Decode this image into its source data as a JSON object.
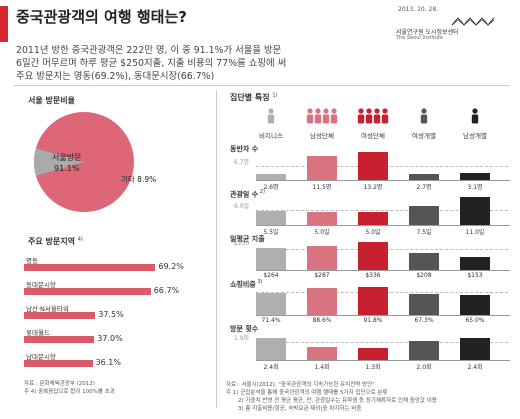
{
  "header": {
    "title": "중국관광객의 여행 행태는?",
    "date": "2013. 10. 28.",
    "org_kr": "서울연구원 도시정보센터",
    "org_en": "The Seoul Institute"
  },
  "intro": {
    "line1": "2011년 방한 중국관광객은 222만 명, 이 중 91.1%가 서울을 방문",
    "line2": "6일간 머무르며 하루 평균 $250지출, 지출 비용의 77%를 쇼핑에 써",
    "line3": "주요 방문지는 명동(69.2%), 동대문시장(66.7%)"
  },
  "colors": {
    "accent": "#d7282f",
    "pie": "#dd6677",
    "pie_other": "#aaaaaa",
    "dest_bar": "#d95b6b"
  },
  "chart_data": [
    {
      "type": "pie",
      "title": "서울 방문비율",
      "slices": [
        {
          "label": "서울방문",
          "value": 91.1,
          "value_text": "91.1%"
        },
        {
          "label": "기타",
          "value": 8.9,
          "value_text": "8.9%"
        }
      ]
    },
    {
      "type": "bar",
      "title": "주요 방문지역",
      "title_note": "4)",
      "categories": [
        "명동",
        "동대문시장",
        "남산·N서울타워",
        "롯데월드",
        "남대문시장"
      ],
      "values": [
        69.2,
        66.7,
        37.5,
        37.0,
        36.1
      ],
      "value_labels": [
        "69.2%",
        "66.7%",
        "37.5%",
        "37.0%",
        "36.1%"
      ],
      "xlim": [
        0,
        100
      ]
    },
    {
      "type": "bar",
      "title": "집단별 특징",
      "title_note": "1)",
      "categories": [
        "비지니스",
        "남성단체",
        "여성단체",
        "여성개별",
        "남성개별"
      ],
      "category_colors": [
        "#b0b0b0",
        "#d8747f",
        "#c8202e",
        "#555555",
        "#222222"
      ],
      "rows": [
        {
          "label": "동반자 수",
          "note": "",
          "avg_text": "6.7명",
          "avg": 6.7,
          "max": 13.2,
          "values": [
            2.6,
            11.5,
            13.2,
            2.7,
            3.1
          ],
          "value_labels": [
            "2.6명",
            "11.5명",
            "13.2명",
            "2.7명",
            "3.1명"
          ]
        },
        {
          "label": "관광일 수",
          "note": "2)",
          "avg_text": "6.0일",
          "avg": 6.0,
          "max": 11.0,
          "values": [
            5.5,
            5.0,
            5.0,
            7.5,
            11.0
          ],
          "value_labels": [
            "5.5일",
            "5.0일",
            "5.0일",
            "7.5일",
            "11.0일"
          ]
        },
        {
          "label": "일평균 지출",
          "note": "",
          "avg_text": "$250",
          "avg": 250,
          "max": 336,
          "values": [
            264,
            287,
            336,
            208,
            153
          ],
          "value_labels": [
            "$264",
            "$287",
            "$336",
            "$208",
            "$153"
          ]
        },
        {
          "label": "쇼핑비중",
          "note": "3)",
          "avg_text": "76.9%",
          "avg": 76.9,
          "max": 91.8,
          "values": [
            71.4,
            88.6,
            91.8,
            67.3,
            65.0
          ],
          "value_labels": [
            "71.4%",
            "88.6%",
            "91.8%",
            "67.3%",
            "65.0%"
          ]
        },
        {
          "label": "방문 횟수",
          "note": "",
          "avg_text": "1.9회",
          "avg": 1.9,
          "max": 3.0,
          "values": [
            2.4,
            1.4,
            1.3,
            2.0,
            2.4
          ],
          "value_labels": [
            "2.4회",
            "1.4회",
            "1.3회",
            "2.0회",
            "2.4회"
          ]
        }
      ]
    }
  ],
  "sources": {
    "left1": "자료 : 문화체육관광부 (2012)",
    "left2": "주 4) 중복응답으로 합이 100%를 초과",
    "right1": "자료 : 서울시(2012), \"중국관광객의 지속가능한 유치전략 방안\"",
    "right2": "주 1) 군집분석을 통해 중국관광객의 여행 행태를 5가지 집단으로 분류",
    "right3": "2) 가중치 반영 전 평균 평균, 단, 관광일수는 유학생 등 장기체류자로 인해 중앙값 이용",
    "right4": "3) 총 지출비용(항공, 숙박요금 제외)중 차지하는 비중"
  }
}
